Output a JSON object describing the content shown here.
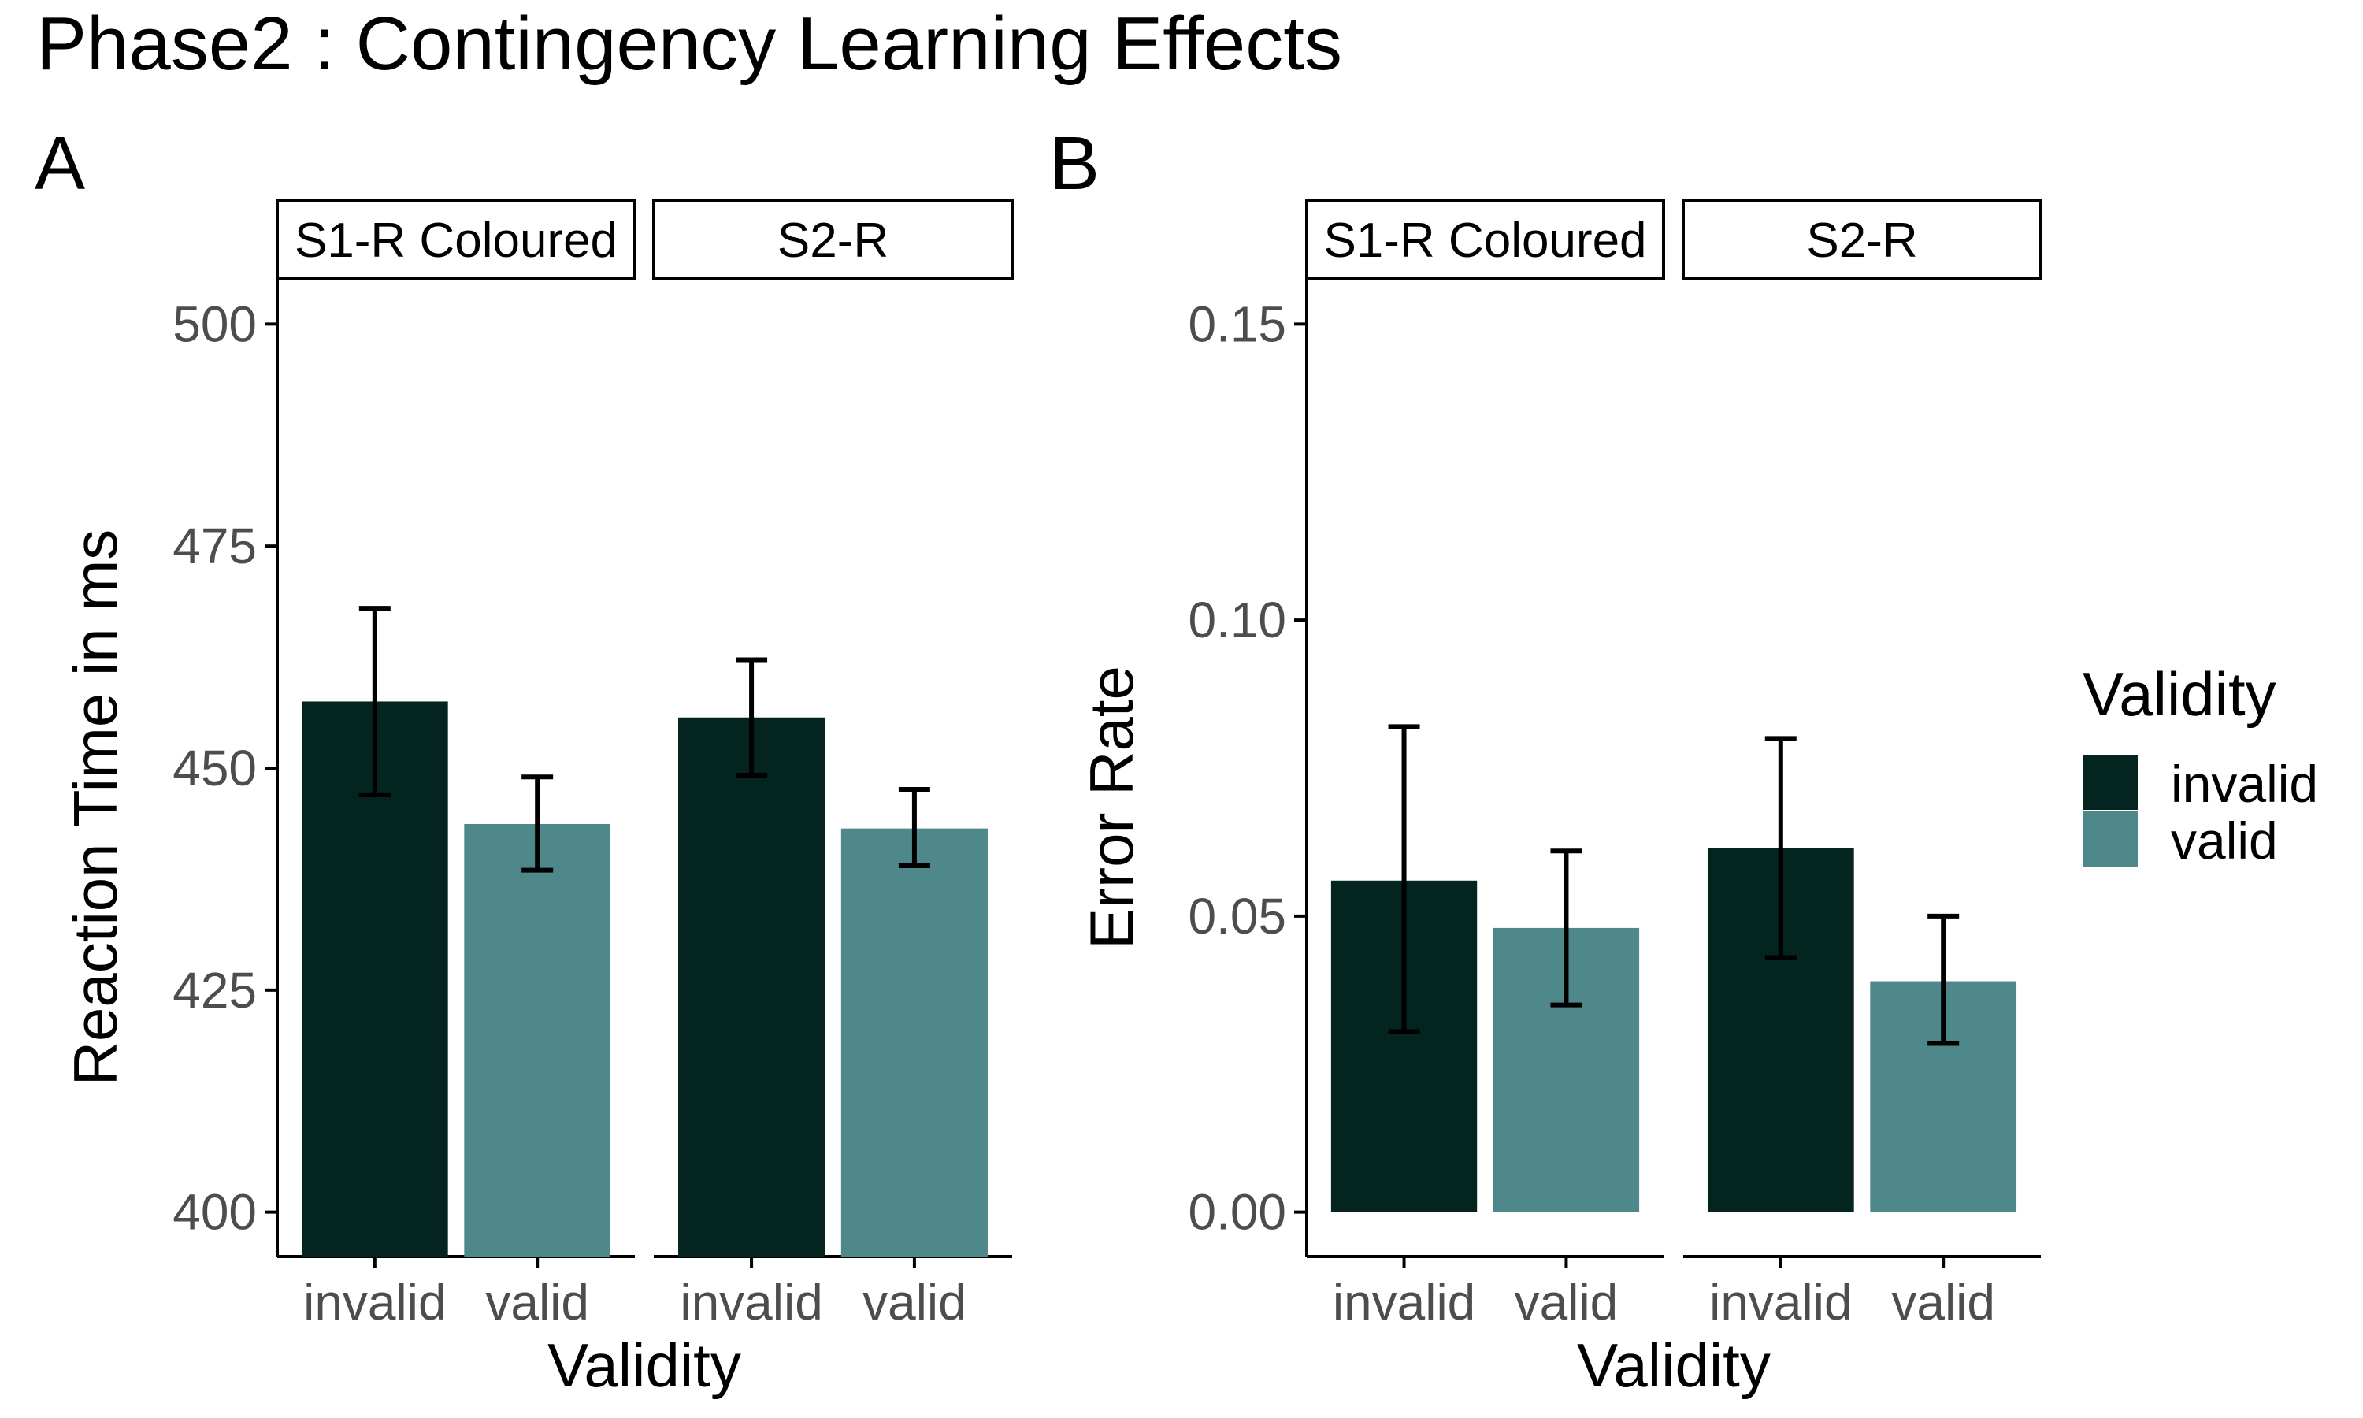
{
  "figure": {
    "title": "Phase2 : Contingency Learning Effects"
  },
  "colors": {
    "invalid": "#03241f",
    "valid": "#4f888b",
    "axis": "#000000",
    "tick_label": "#4d4d4d"
  },
  "legend": {
    "title": "Validity",
    "placement": "right",
    "entries": [
      {
        "key": "invalid",
        "label": "invalid"
      },
      {
        "key": "valid",
        "label": "valid"
      }
    ]
  },
  "chart_data": [
    {
      "type": "bar",
      "panel_label": "A",
      "xlabel": "Validity",
      "ylabel": "Reaction Time in ms",
      "ylim": [
        395,
        505
      ],
      "yticks": [
        400,
        425,
        450,
        475,
        500
      ],
      "ytick_labels": [
        "400",
        "425",
        "450",
        "475",
        "500"
      ],
      "grid": false,
      "facets": [
        {
          "strip": "S1-R Coloured",
          "categories": [
            "invalid",
            "valid"
          ],
          "values": [
            457.5,
            443.7
          ],
          "error_low": [
            447.0,
            438.5
          ],
          "error_high": [
            468.0,
            449.0
          ]
        },
        {
          "strip": "S2-R",
          "categories": [
            "invalid",
            "valid"
          ],
          "values": [
            455.7,
            443.2
          ],
          "error_low": [
            449.2,
            439.0
          ],
          "error_high": [
            462.2,
            447.6
          ]
        }
      ]
    },
    {
      "type": "bar",
      "panel_label": "B",
      "xlabel": "Validity",
      "ylabel": "Error Rate",
      "ylim": [
        -0.0075,
        0.1575
      ],
      "yticks": [
        0.0,
        0.05,
        0.1,
        0.15
      ],
      "ytick_labels": [
        "0.00",
        "0.05",
        "0.10",
        "0.15"
      ],
      "grid": false,
      "facets": [
        {
          "strip": "S1-R Coloured",
          "categories": [
            "invalid",
            "valid"
          ],
          "values": [
            0.056,
            0.048
          ],
          "error_low": [
            0.0305,
            0.035
          ],
          "error_high": [
            0.082,
            0.061
          ]
        },
        {
          "strip": "S2-R",
          "categories": [
            "invalid",
            "valid"
          ],
          "values": [
            0.0615,
            0.039
          ],
          "error_low": [
            0.043,
            0.0285
          ],
          "error_high": [
            0.08,
            0.05
          ]
        }
      ]
    }
  ]
}
